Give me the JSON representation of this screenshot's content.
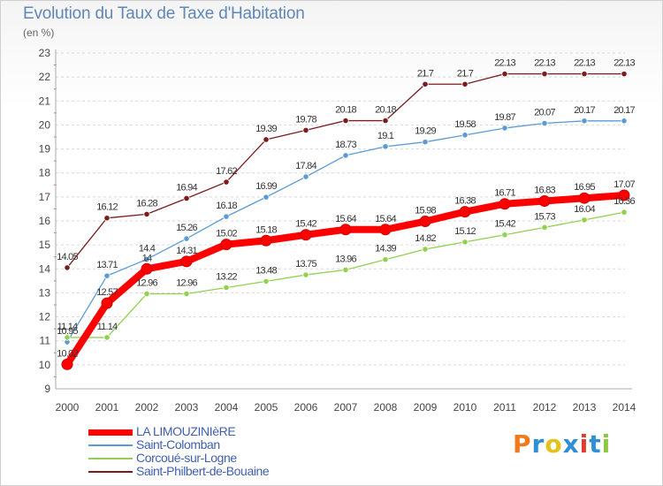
{
  "title": "Evolution du Taux de Taxe d'Habitation",
  "unit_label": "(en %)",
  "logo": {
    "text": "Proxiti",
    "colors": [
      "#f07b1f",
      "#2f8fd6",
      "#e4c21a",
      "#2f8fd6",
      "#e23a2c",
      "#2f8fd6",
      "#8bc83f"
    ]
  },
  "chart_data": {
    "type": "line",
    "title": "Evolution du Taux de Taxe d'Habitation",
    "ylabel": "(en %)",
    "xlabel": "",
    "ylim": [
      9,
      23
    ],
    "yticks": [
      9,
      10,
      11,
      12,
      13,
      14,
      15,
      16,
      17,
      18,
      19,
      20,
      21,
      22,
      23
    ],
    "grid": "horizontal-dashed",
    "legend_position": "bottom-left",
    "x": [
      "2000",
      "2001",
      "2002",
      "2003",
      "2004",
      "2005",
      "2006",
      "2007",
      "2008",
      "2009",
      "2010",
      "2011",
      "2012",
      "2013",
      "2014"
    ],
    "series": [
      {
        "name": "LA LIMOUZINIèRE",
        "color": "#ff0000",
        "values": [
          10.02,
          12.57,
          14,
          14.31,
          15.02,
          15.18,
          15.42,
          15.64,
          15.64,
          15.98,
          16.38,
          16.71,
          16.83,
          16.95,
          17.07
        ],
        "labels": [
          "10.02",
          "12.57",
          "14",
          "14.31",
          "15.02",
          "15.18",
          "15.42",
          "15.64",
          "15.64",
          "15.98",
          "16.38",
          "16.71",
          "16.83",
          "16.95",
          "17.07"
        ]
      },
      {
        "name": "Saint-Colomban",
        "color": "#5b9bd5",
        "values": [
          10.95,
          13.71,
          14.4,
          15.26,
          16.18,
          16.99,
          17.84,
          18.73,
          19.1,
          19.29,
          19.58,
          19.87,
          20.07,
          20.17,
          20.17
        ],
        "labels": [
          "10.95",
          "13.71",
          "14.4",
          "15.26",
          "16.18",
          "16.99",
          "17.84",
          "18.73",
          "19.1",
          "19.29",
          "19.58",
          "19.87",
          "20.07",
          "20.17",
          "20.17"
        ]
      },
      {
        "name": "Corcoué-sur-Logne",
        "color": "#92d050",
        "values": [
          11.14,
          11.14,
          12.96,
          12.96,
          13.22,
          13.48,
          13.75,
          13.96,
          14.39,
          14.82,
          15.12,
          15.42,
          15.73,
          16.04,
          16.36
        ],
        "labels": [
          "11.14",
          "11.14",
          "12.96",
          "12.96",
          "13.22",
          "13.48",
          "13.75",
          "13.96",
          "14.39",
          "14.82",
          "15.12",
          "15.42",
          "15.73",
          "16.04",
          "16.36"
        ]
      },
      {
        "name": "Saint-Philbert-de-Bouaine",
        "color": "#7b1c1c",
        "values": [
          14.05,
          16.12,
          16.28,
          16.94,
          17.62,
          19.39,
          19.78,
          20.18,
          20.18,
          21.7,
          21.7,
          22.13,
          22.13,
          22.13,
          22.13
        ],
        "labels": [
          "14.05",
          "16.12",
          "16.28",
          "16.94",
          "17.62",
          "19.39",
          "19.78",
          "20.18",
          "20.18",
          "21.7",
          "21.7",
          "22.13",
          "22.13",
          "22.13",
          "22.13"
        ]
      }
    ]
  }
}
